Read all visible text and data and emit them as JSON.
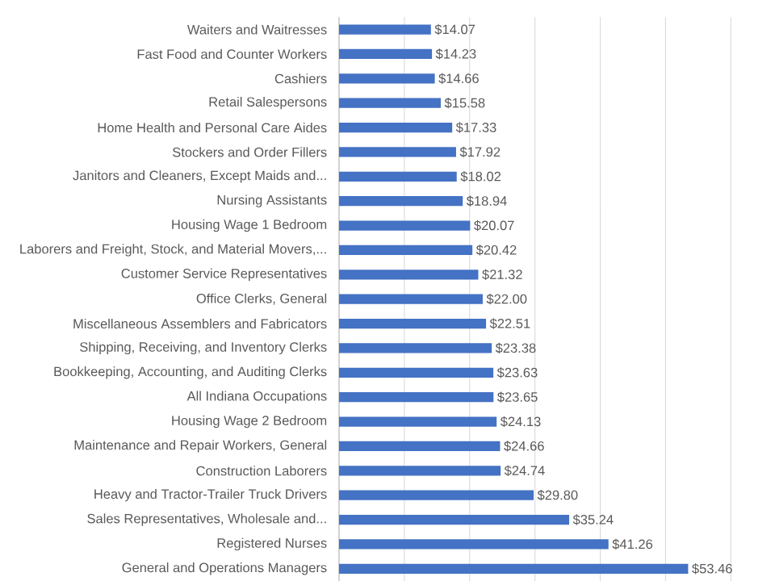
{
  "chart_data": {
    "type": "bar",
    "orientation": "horizontal",
    "categories": [
      "Waiters and Waitresses",
      "Fast Food and Counter Workers",
      "Cashiers",
      "Retail Salespersons",
      "Home Health and Personal Care Aides",
      "Stockers and Order Fillers",
      "Janitors and Cleaners, Except Maids and...",
      "Nursing Assistants",
      "Housing Wage 1 Bedroom",
      "Laborers and Freight, Stock, and Material Movers,...",
      "Customer Service Representatives",
      "Office Clerks, General",
      "Miscellaneous Assemblers and Fabricators",
      "Shipping, Receiving, and Inventory Clerks",
      "Bookkeeping, Accounting, and Auditing Clerks",
      "All Indiana Occupations",
      "Housing Wage 2 Bedroom",
      "Maintenance and Repair Workers, General",
      "Construction Laborers",
      "Heavy and Tractor-Trailer Truck Drivers",
      "Sales Representatives, Wholesale and...",
      "Registered Nurses",
      "General and Operations Managers"
    ],
    "values": [
      14.07,
      14.23,
      14.66,
      15.58,
      17.33,
      17.92,
      18.02,
      18.94,
      20.07,
      20.42,
      21.32,
      22.0,
      22.51,
      23.38,
      23.63,
      23.65,
      24.13,
      24.66,
      24.74,
      29.8,
      35.24,
      41.26,
      53.46
    ],
    "value_labels": [
      "$14.07",
      "$14.23",
      "$14.66",
      "$15.58",
      "$17.33",
      "$17.92",
      "$18.02",
      "$18.94",
      "$20.07",
      "$20.42",
      "$21.32",
      "$22.00",
      "$22.51",
      "$23.38",
      "$23.63",
      "$23.65",
      "$24.13",
      "$24.66",
      "$24.74",
      "$29.80",
      "$35.24",
      "$41.26",
      "$53.46"
    ],
    "color": "#4472c4",
    "xlim": [
      0,
      60
    ],
    "xticks": [
      {
        "value": 0,
        "label": null
      },
      {
        "value": 10,
        "label": null
      },
      {
        "value": 20,
        "label": null
      },
      {
        "value": 30,
        "label": null
      },
      {
        "value": 40,
        "label": null
      },
      {
        "value": 50,
        "label": null
      },
      {
        "value": 60,
        "label": null
      }
    ],
    "grid": "x",
    "tick_labels": "y"
  }
}
